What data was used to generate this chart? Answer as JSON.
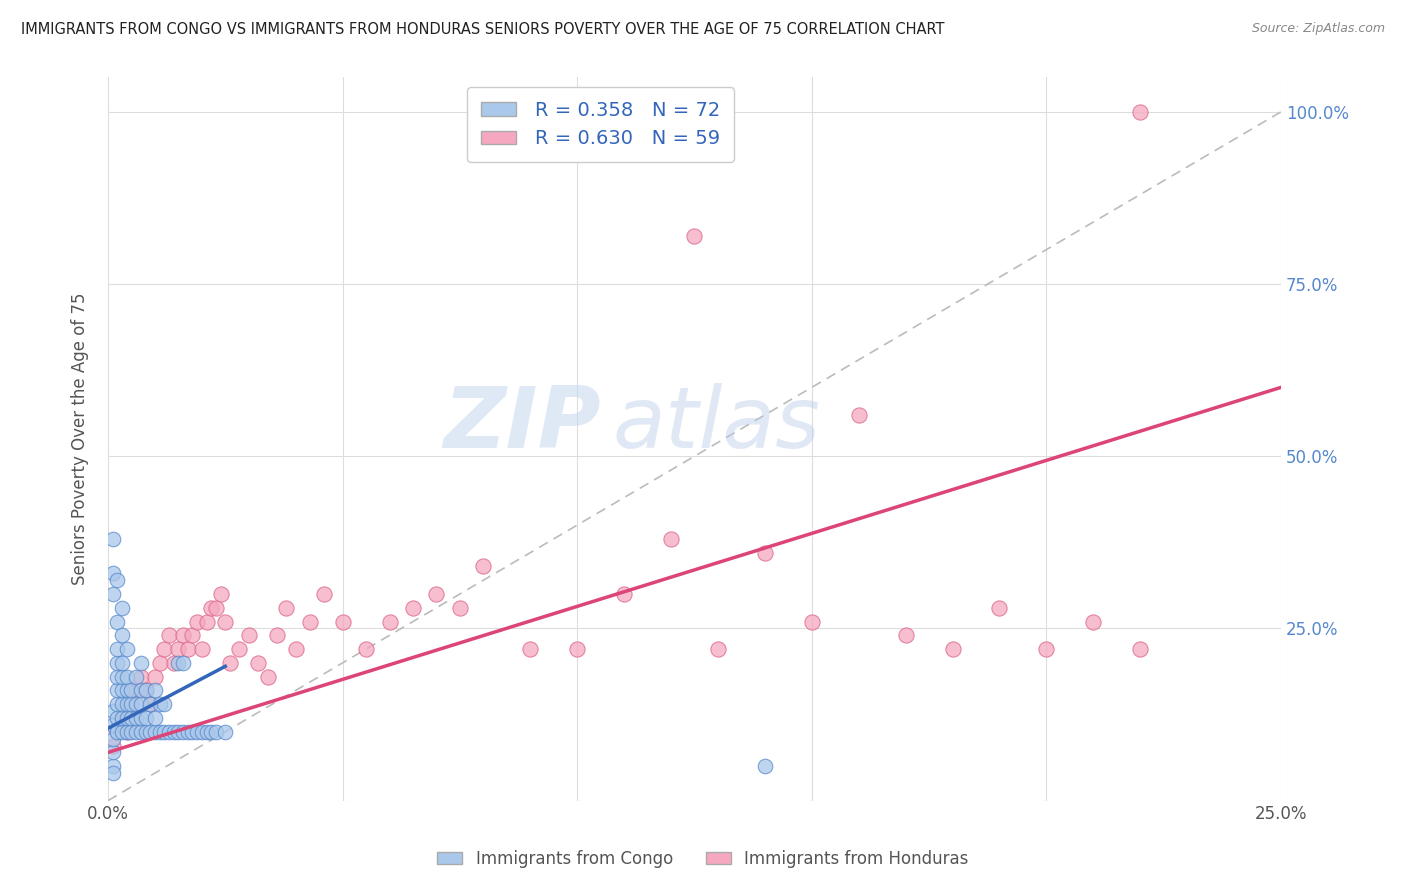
{
  "title": "IMMIGRANTS FROM CONGO VS IMMIGRANTS FROM HONDURAS SENIORS POVERTY OVER THE AGE OF 75 CORRELATION CHART",
  "source": "Source: ZipAtlas.com",
  "ylabel": "Seniors Poverty Over the Age of 75",
  "xlim": [
    0.0,
    0.25
  ],
  "ylim": [
    0.0,
    1.05
  ],
  "congo_color": "#aac8ea",
  "congo_edge_color": "#5588cc",
  "honduras_color": "#f5a8c0",
  "honduras_edge_color": "#dd6688",
  "congo_R": 0.358,
  "congo_N": 72,
  "honduras_R": 0.63,
  "honduras_N": 59,
  "congo_line_color": "#3366bb",
  "honduras_line_color": "#dd4477",
  "diagonal_color": "#bbbbbb",
  "watermark_zip": "ZIP",
  "watermark_atlas": "atlas",
  "background_color": "#ffffff",
  "grid_color": "#dddddd",
  "title_color": "#222222",
  "right_label_color": "#5588cc",
  "congo_x": [
    0.001,
    0.001,
    0.001,
    0.001,
    0.001,
    0.002,
    0.002,
    0.002,
    0.002,
    0.002,
    0.002,
    0.002,
    0.003,
    0.003,
    0.003,
    0.003,
    0.003,
    0.003,
    0.004,
    0.004,
    0.004,
    0.004,
    0.004,
    0.005,
    0.005,
    0.005,
    0.005,
    0.006,
    0.006,
    0.006,
    0.006,
    0.007,
    0.007,
    0.007,
    0.007,
    0.007,
    0.008,
    0.008,
    0.008,
    0.009,
    0.009,
    0.01,
    0.01,
    0.01,
    0.011,
    0.011,
    0.012,
    0.012,
    0.013,
    0.014,
    0.015,
    0.016,
    0.017,
    0.018,
    0.019,
    0.02,
    0.021,
    0.022,
    0.023,
    0.025,
    0.001,
    0.001,
    0.001,
    0.002,
    0.002,
    0.003,
    0.003,
    0.004,
    0.015,
    0.016,
    0.14,
    0.001
  ],
  "congo_y": [
    0.05,
    0.07,
    0.09,
    0.11,
    0.13,
    0.1,
    0.12,
    0.14,
    0.16,
    0.18,
    0.2,
    0.22,
    0.1,
    0.12,
    0.14,
    0.16,
    0.18,
    0.2,
    0.1,
    0.12,
    0.14,
    0.16,
    0.18,
    0.1,
    0.12,
    0.14,
    0.16,
    0.1,
    0.12,
    0.14,
    0.18,
    0.1,
    0.12,
    0.14,
    0.16,
    0.2,
    0.1,
    0.12,
    0.16,
    0.1,
    0.14,
    0.1,
    0.12,
    0.16,
    0.1,
    0.14,
    0.1,
    0.14,
    0.1,
    0.1,
    0.1,
    0.1,
    0.1,
    0.1,
    0.1,
    0.1,
    0.1,
    0.1,
    0.1,
    0.1,
    0.3,
    0.33,
    0.38,
    0.26,
    0.32,
    0.24,
    0.28,
    0.22,
    0.2,
    0.2,
    0.05,
    0.04
  ],
  "honduras_x": [
    0.001,
    0.002,
    0.003,
    0.004,
    0.005,
    0.005,
    0.006,
    0.007,
    0.008,
    0.009,
    0.01,
    0.011,
    0.012,
    0.013,
    0.014,
    0.015,
    0.016,
    0.017,
    0.018,
    0.019,
    0.02,
    0.021,
    0.022,
    0.023,
    0.024,
    0.025,
    0.026,
    0.028,
    0.03,
    0.032,
    0.034,
    0.036,
    0.038,
    0.04,
    0.043,
    0.046,
    0.05,
    0.055,
    0.06,
    0.065,
    0.07,
    0.075,
    0.08,
    0.09,
    0.1,
    0.11,
    0.12,
    0.13,
    0.14,
    0.15,
    0.16,
    0.17,
    0.18,
    0.19,
    0.2,
    0.21,
    0.22,
    0.125,
    0.22
  ],
  "honduras_y": [
    0.08,
    0.1,
    0.12,
    0.1,
    0.14,
    0.16,
    0.16,
    0.18,
    0.16,
    0.14,
    0.18,
    0.2,
    0.22,
    0.24,
    0.2,
    0.22,
    0.24,
    0.22,
    0.24,
    0.26,
    0.22,
    0.26,
    0.28,
    0.28,
    0.3,
    0.26,
    0.2,
    0.22,
    0.24,
    0.2,
    0.18,
    0.24,
    0.28,
    0.22,
    0.26,
    0.3,
    0.26,
    0.22,
    0.26,
    0.28,
    0.3,
    0.28,
    0.34,
    0.22,
    0.22,
    0.3,
    0.38,
    0.22,
    0.36,
    0.26,
    0.56,
    0.24,
    0.22,
    0.28,
    0.22,
    0.26,
    0.22,
    0.82,
    1.0
  ],
  "congo_line_x0": 0.0,
  "congo_line_x1": 0.025,
  "congo_line_y0": 0.105,
  "congo_line_y1": 0.195,
  "honduras_line_x0": 0.0,
  "honduras_line_x1": 0.25,
  "honduras_line_y0": 0.07,
  "honduras_line_y1": 0.6
}
